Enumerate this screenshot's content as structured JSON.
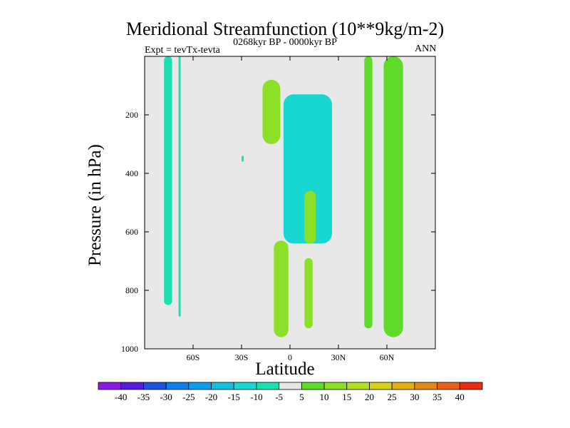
{
  "title": "Meridional Streamfunction (10**9kg/m-2)",
  "subtitle_left": "Expt = tevTx-tevta",
  "subtitle_center": "0268kyr BP - 0000kyr BP",
  "subtitle_right": "ANN",
  "chart_data": {
    "type": "heatmap",
    "title": "Meridional Streamfunction (10**9kg/m-2)",
    "xlabel": "Latitude",
    "ylabel": "Pressure (in hPa)",
    "xlim": [
      -90,
      90
    ],
    "ylim": [
      1000,
      0
    ],
    "x_ticks": [
      -60,
      -30,
      0,
      30,
      60
    ],
    "x_tick_labels": [
      "60S",
      "30S",
      "0",
      "30N",
      "60N"
    ],
    "y_ticks": [
      200,
      400,
      600,
      800,
      1000
    ],
    "y_tick_labels": [
      "200",
      "400",
      "600",
      "800",
      "1000"
    ],
    "background_color": "#e8e8e8",
    "colorbar": {
      "levels": [
        "-40",
        "-35",
        "-30",
        "-25",
        "-20",
        "-15",
        "-10",
        "-5",
        "5",
        "10",
        "15",
        "20",
        "25",
        "30",
        "35",
        "40"
      ],
      "colors": [
        "#8a1ae0",
        "#5a1adc",
        "#1c55e0",
        "#0f80e8",
        "#0aa0e8",
        "#12c0e0",
        "#18d6d0",
        "#1de0b0",
        "#e6e6e6",
        "#5fdc2a",
        "#8ce028",
        "#b2e020",
        "#d6d218",
        "#e0b010",
        "#e48818",
        "#e86018",
        "#e82e10"
      ]
    },
    "features": [
      {
        "sign": "negative",
        "level": "-5",
        "lat_range": [
          -78,
          -73
        ],
        "p_range": [
          0,
          850
        ]
      },
      {
        "sign": "negative",
        "level": "-5",
        "lat_range": [
          -69,
          -68
        ],
        "p_range": [
          0,
          890
        ]
      },
      {
        "sign": "negative",
        "level": "-5",
        "lat_range": [
          -30,
          -29
        ],
        "p_range": [
          340,
          360
        ]
      },
      {
        "sign": "negative",
        "level": "-10",
        "lat_range": [
          -4,
          26
        ],
        "p_range": [
          130,
          640
        ]
      },
      {
        "sign": "positive",
        "level": "10",
        "lat_range": [
          -17,
          -6
        ],
        "p_range": [
          80,
          300
        ]
      },
      {
        "sign": "positive",
        "level": "10",
        "lat_range": [
          9,
          16
        ],
        "p_range": [
          460,
          640
        ]
      },
      {
        "sign": "positive",
        "level": "10",
        "lat_range": [
          -10,
          -1
        ],
        "p_range": [
          630,
          960
        ]
      },
      {
        "sign": "positive",
        "level": "10",
        "lat_range": [
          9,
          14
        ],
        "p_range": [
          690,
          930
        ]
      },
      {
        "sign": "positive",
        "level": "5",
        "lat_range": [
          46,
          51
        ],
        "p_range": [
          0,
          930
        ]
      },
      {
        "sign": "positive",
        "level": "5",
        "lat_range": [
          58,
          70
        ],
        "p_range": [
          0,
          960
        ]
      }
    ]
  }
}
